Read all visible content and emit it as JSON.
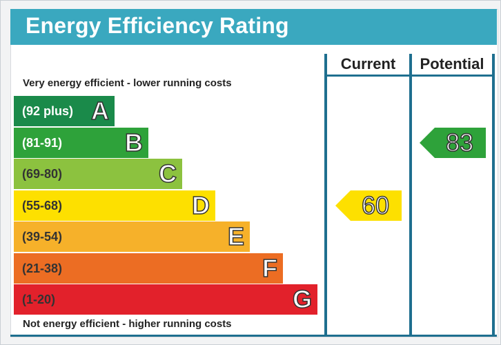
{
  "title": "Energy Efficiency Rating",
  "columns": {
    "current": "Current",
    "potential": "Potential"
  },
  "captions": {
    "top": "Very energy efficient - lower running costs",
    "bottom": "Not energy efficient - higher running costs"
  },
  "chart_data": {
    "type": "bar",
    "bands": [
      {
        "range": "(92 plus)",
        "letter": "A",
        "color": "#1a8a4a",
        "min": 92,
        "max": 100
      },
      {
        "range": "(81-91)",
        "letter": "B",
        "color": "#2ea23a",
        "min": 81,
        "max": 91
      },
      {
        "range": "(69-80)",
        "letter": "C",
        "color": "#8cc23f",
        "min": 69,
        "max": 80
      },
      {
        "range": "(55-68)",
        "letter": "D",
        "color": "#fde000",
        "min": 55,
        "max": 68
      },
      {
        "range": "(39-54)",
        "letter": "E",
        "color": "#f6b12a",
        "min": 39,
        "max": 54
      },
      {
        "range": "(21-38)",
        "letter": "F",
        "color": "#ec6d23",
        "min": 21,
        "max": 38
      },
      {
        "range": "(1-20)",
        "letter": "G",
        "color": "#e2212b",
        "min": 1,
        "max": 20
      }
    ],
    "current": {
      "value": 60,
      "band": "D",
      "color": "#fde000"
    },
    "potential": {
      "value": 83,
      "band": "B",
      "color": "#2ea23a"
    }
  }
}
